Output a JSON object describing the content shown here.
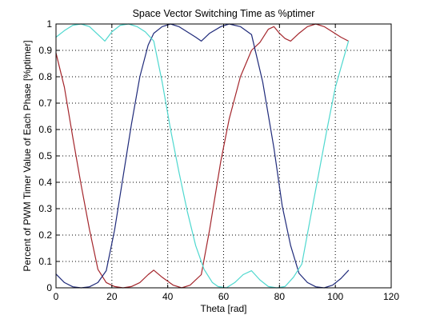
{
  "chart_data": {
    "type": "line",
    "title": "Space Vector Switching Time as %ptimer",
    "xlabel": "Theta [rad]",
    "ylabel": "Percent of PWM Timer Value of Each Phase [%ptimer]",
    "xlim": [
      0,
      120
    ],
    "ylim": [
      0,
      1
    ],
    "xticks": [
      0,
      20,
      40,
      60,
      80,
      100,
      120
    ],
    "yticks": [
      0,
      0.1,
      0.2,
      0.3,
      0.4,
      0.5,
      0.6,
      0.7,
      0.8,
      0.9,
      1
    ],
    "xtick_labels": [
      "0",
      "20",
      "40",
      "60",
      "80",
      "100",
      "120"
    ],
    "ytick_labels": [
      "0",
      "0.1",
      "0.2",
      "0.3",
      "0.4",
      "0.5",
      "0.6",
      "0.7",
      "0.8",
      "0.9",
      "1"
    ],
    "grid": true,
    "grid_style": "dotted",
    "legend": false,
    "series": [
      {
        "color": "#a4262c",
        "x": [
          0,
          3,
          6,
          9,
          12,
          15,
          18,
          21,
          24,
          27,
          30,
          33,
          35,
          38,
          42,
          45,
          48,
          52,
          55,
          59,
          62,
          66,
          70,
          73,
          76,
          78,
          80,
          82,
          84,
          87,
          90,
          93,
          96,
          99,
          102,
          104.7
        ],
        "y": [
          0.89,
          0.76,
          0.57,
          0.39,
          0.22,
          0.07,
          0.02,
          0.005,
          0,
          0.005,
          0.02,
          0.05,
          0.067,
          0.04,
          0.01,
          0,
          0.01,
          0.05,
          0.22,
          0.48,
          0.64,
          0.8,
          0.9,
          0.93,
          0.98,
          0.99,
          0.965,
          0.945,
          0.935,
          0.965,
          0.99,
          1.0,
          0.99,
          0.97,
          0.95,
          0.935
        ]
      },
      {
        "color": "#1f2a7a",
        "x": [
          0,
          3,
          6,
          9,
          12,
          15,
          18,
          21,
          24,
          27,
          30,
          33,
          35,
          38,
          41,
          44,
          47,
          50,
          52,
          55,
          59,
          62,
          66,
          70,
          74,
          78,
          81,
          84,
          87,
          90,
          93,
          96,
          99,
          102,
          104.7
        ],
        "y": [
          0.052,
          0.02,
          0.004,
          0,
          0.004,
          0.02,
          0.065,
          0.22,
          0.42,
          0.62,
          0.8,
          0.92,
          0.965,
          0.99,
          1.0,
          0.99,
          0.97,
          0.95,
          0.935,
          0.965,
          0.99,
          1.0,
          0.99,
          0.96,
          0.78,
          0.53,
          0.31,
          0.16,
          0.055,
          0.02,
          0.004,
          0,
          0.01,
          0.035,
          0.066
        ]
      },
      {
        "color": "#4fd8cf",
        "x": [
          0,
          3,
          6,
          9,
          12,
          15,
          17.5,
          20,
          23,
          26,
          29,
          32,
          35,
          38,
          41,
          44,
          47,
          50,
          53,
          56,
          58,
          61,
          64,
          67,
          70,
          73,
          76,
          79,
          82,
          85,
          88,
          91,
          94,
          97,
          100,
          104.7
        ],
        "y": [
          0.95,
          0.975,
          0.995,
          1.0,
          0.99,
          0.96,
          0.935,
          0.97,
          0.995,
          1.0,
          0.99,
          0.97,
          0.935,
          0.78,
          0.6,
          0.44,
          0.29,
          0.16,
          0.07,
          0.02,
          0.005,
          0,
          0.02,
          0.05,
          0.065,
          0.03,
          0.005,
          0,
          0.005,
          0.04,
          0.09,
          0.26,
          0.43,
          0.6,
          0.76,
          0.935
        ]
      }
    ]
  }
}
